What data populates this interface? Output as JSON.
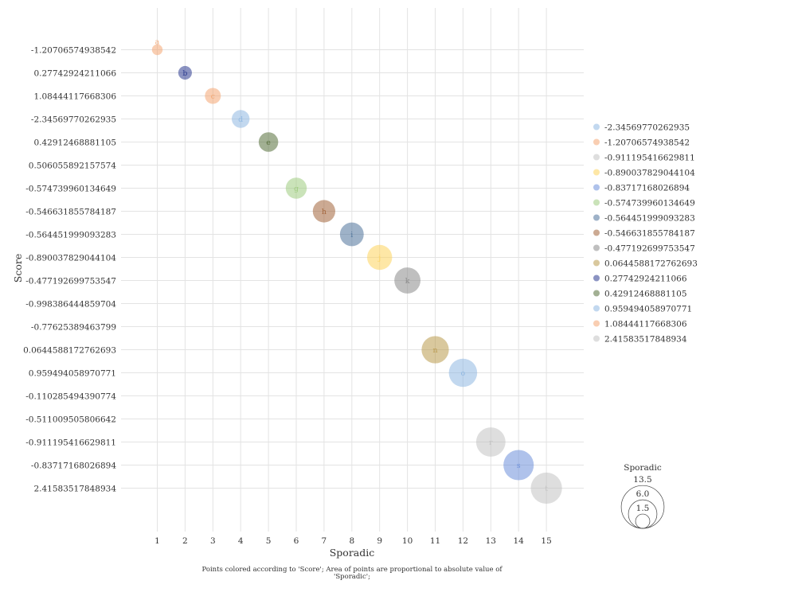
{
  "chart_data": {
    "type": "scatter",
    "xlabel": "Sporadic",
    "ylabel": "Score",
    "caption_lines": [
      "Points colored according to 'Score'; Area of points are proportional to absolute value of",
      "'Sporadic';"
    ],
    "x_ticks": [
      1,
      2,
      3,
      4,
      5,
      6,
      7,
      8,
      9,
      10,
      11,
      12,
      13,
      14,
      15
    ],
    "xlim": [
      -0.3,
      16.0
    ],
    "y_categories": [
      "-1.20706574938542",
      "0.27742924211066",
      "1.08444117668306",
      "-2.34569770262935",
      "0.42912468881105",
      "0.506055892157574",
      "-0.574739960134649",
      "-0.546631855784187",
      "-0.564451999093283",
      "-0.890037829044104",
      "-0.477192699753547",
      "-0.998386444859704",
      "-0.77625389463799",
      "0.0644588172762693",
      "0.959494058970771",
      "-0.110285494390774",
      "-0.511009505806642",
      "-0.911195416629811",
      "-0.83717168026894",
      "2.41583517848934"
    ],
    "points": [
      {
        "label": "a",
        "x": 1,
        "y": "-1.20706574938542",
        "color": "#f4a672"
      },
      {
        "label": "b",
        "x": 2,
        "y": "0.27742924211066",
        "color": "#2b3a8f"
      },
      {
        "label": "c",
        "x": 3,
        "y": "1.08444117668306",
        "color": "#f4a672"
      },
      {
        "label": "d",
        "x": 4,
        "y": "-2.34569770262935",
        "color": "#8fb8e2"
      },
      {
        "label": "e",
        "x": 5,
        "y": "0.42912468881105",
        "color": "#566f3a"
      },
      {
        "label": "g",
        "x": 6,
        "y": "-0.574739960134649",
        "color": "#9fcc80"
      },
      {
        "label": "h",
        "x": 7,
        "y": "-0.546631855784187",
        "color": "#a3643a"
      },
      {
        "label": "i",
        "x": 8,
        "y": "-0.564451999093283",
        "color": "#4e739a"
      },
      {
        "label": "j",
        "x": 9,
        "y": "-0.890037829044104",
        "color": "#fed45c"
      },
      {
        "label": "k",
        "x": 10,
        "y": "-0.477192699753547",
        "color": "#8a8a8a"
      },
      {
        "label": "n",
        "x": 11,
        "y": "0.0644588172762693",
        "color": "#b99a4d"
      },
      {
        "label": "o",
        "x": 12,
        "y": "0.959494058970771",
        "color": "#8fb8e2"
      },
      {
        "label": "r",
        "x": 13,
        "y": "-0.911195416629811",
        "color": "#c3c3c3"
      },
      {
        "label": "s",
        "x": 14,
        "y": "-0.83717168026894",
        "color": "#6d8fdb"
      },
      {
        "label": "t",
        "x": 15,
        "y": "2.41583517848934",
        "color": "#c3c3c3"
      }
    ],
    "legend": {
      "placement": "right",
      "entries": [
        {
          "text": "-2.34569770262935",
          "color": "#8fb8e2"
        },
        {
          "text": "-1.20706574938542",
          "color": "#f4a672"
        },
        {
          "text": "-0.911195416629811",
          "color": "#c3c3c3"
        },
        {
          "text": "-0.890037829044104",
          "color": "#fed45c"
        },
        {
          "text": "-0.83717168026894",
          "color": "#6d8fdb"
        },
        {
          "text": "-0.574739960134649",
          "color": "#9fcc80"
        },
        {
          "text": "-0.564451999093283",
          "color": "#4e739a"
        },
        {
          "text": "-0.546631855784187",
          "color": "#a3643a"
        },
        {
          "text": "-0.477192699753547",
          "color": "#8a8a8a"
        },
        {
          "text": "0.0644588172762693",
          "color": "#b99a4d"
        },
        {
          "text": "0.27742924211066",
          "color": "#2b3a8f"
        },
        {
          "text": "0.42912468881105",
          "color": "#566f3a"
        },
        {
          "text": "0.959494058970771",
          "color": "#8fb8e2"
        },
        {
          "text": "1.08444117668306",
          "color": "#f4a672"
        },
        {
          "text": "2.41583517848934",
          "color": "#c3c3c3"
        }
      ]
    },
    "size_legend": {
      "title": "Sporadic",
      "values": [
        13.5,
        6.0,
        1.5
      ]
    },
    "grid": true
  }
}
